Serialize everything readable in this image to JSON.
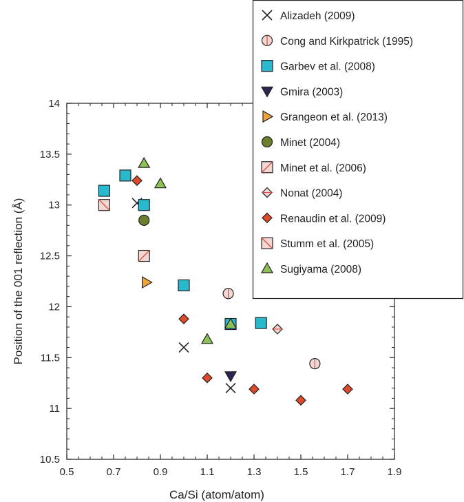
{
  "chart_data": {
    "type": "scatter",
    "xlabel": "Ca/Si (atom/atom)",
    "ylabel": "Position of the 001 reflection (Å)",
    "xlim": [
      0.5,
      1.9
    ],
    "ylim": [
      10.5,
      14
    ],
    "xticks": [
      "0.5",
      "0.7",
      "0.9",
      "1.1",
      "1.3",
      "1.5",
      "1.7",
      "1.9"
    ],
    "xtick_values": [
      0.5,
      0.7,
      0.9,
      1.1,
      1.3,
      1.5,
      1.7,
      1.9
    ],
    "yticks": [
      "10.5",
      "11",
      "11.5",
      "12",
      "12.5",
      "13",
      "13.5",
      "14"
    ],
    "ytick_values": [
      10.5,
      11,
      11.5,
      12,
      12.5,
      13,
      13.5,
      14
    ],
    "grid": false,
    "legend_position": "top-right",
    "series": [
      {
        "name": "Alizadeh (2009)",
        "marker": "x",
        "color": "#222222",
        "points": [
          [
            0.8,
            13.02
          ],
          [
            1.0,
            11.6
          ],
          [
            1.2,
            11.2
          ]
        ]
      },
      {
        "name": "Cong and Kirkpatrick (1995)",
        "marker": "circle-line",
        "color": "#f4d6d3",
        "points": [
          [
            1.19,
            12.13
          ],
          [
            1.56,
            11.44
          ]
        ]
      },
      {
        "name": "Garbev et al. (2008)",
        "marker": "square",
        "color": "#29b9cf",
        "points": [
          [
            0.66,
            13.14
          ],
          [
            0.75,
            13.29
          ],
          [
            0.83,
            13.0
          ],
          [
            1.0,
            12.21
          ],
          [
            1.2,
            11.83
          ],
          [
            1.33,
            11.84
          ]
        ]
      },
      {
        "name": "Gmira (2003)",
        "marker": "triangle-down",
        "color": "#2e2452",
        "points": [
          [
            1.2,
            11.32
          ]
        ]
      },
      {
        "name": "Grangeon et al. (2013)",
        "marker": "triangle-right",
        "color": "#f0a53a",
        "points": [
          [
            0.84,
            12.24
          ]
        ]
      },
      {
        "name": "Minet (2004)",
        "marker": "circle",
        "color": "#6b7f2d",
        "points": [
          [
            0.83,
            12.85
          ]
        ]
      },
      {
        "name": "Minet et al. (2006)",
        "marker": "square-slash",
        "color": "#f4d6d3",
        "points": [
          [
            0.83,
            12.5
          ]
        ]
      },
      {
        "name": "Nonat (2004)",
        "marker": "diamond-line",
        "color": "#f4d6d3",
        "points": [
          [
            1.4,
            11.78
          ]
        ]
      },
      {
        "name": "Renaudin et al. (2009)",
        "marker": "diamond",
        "color": "#de4a2a",
        "points": [
          [
            0.8,
            13.24
          ],
          [
            1.0,
            11.88
          ],
          [
            1.1,
            11.3
          ],
          [
            1.3,
            11.19
          ],
          [
            1.5,
            11.08
          ],
          [
            1.7,
            11.19
          ]
        ]
      },
      {
        "name": "Stumm et al. (2005)",
        "marker": "square-backslash",
        "color": "#f4d6d3",
        "points": [
          [
            0.66,
            13.0
          ]
        ]
      },
      {
        "name": "Sugiyama (2008)",
        "marker": "triangle-up",
        "color": "#8dc155",
        "points": [
          [
            0.83,
            13.41
          ],
          [
            0.9,
            13.21
          ],
          [
            1.1,
            11.68
          ],
          [
            1.2,
            11.83
          ]
        ]
      }
    ]
  }
}
